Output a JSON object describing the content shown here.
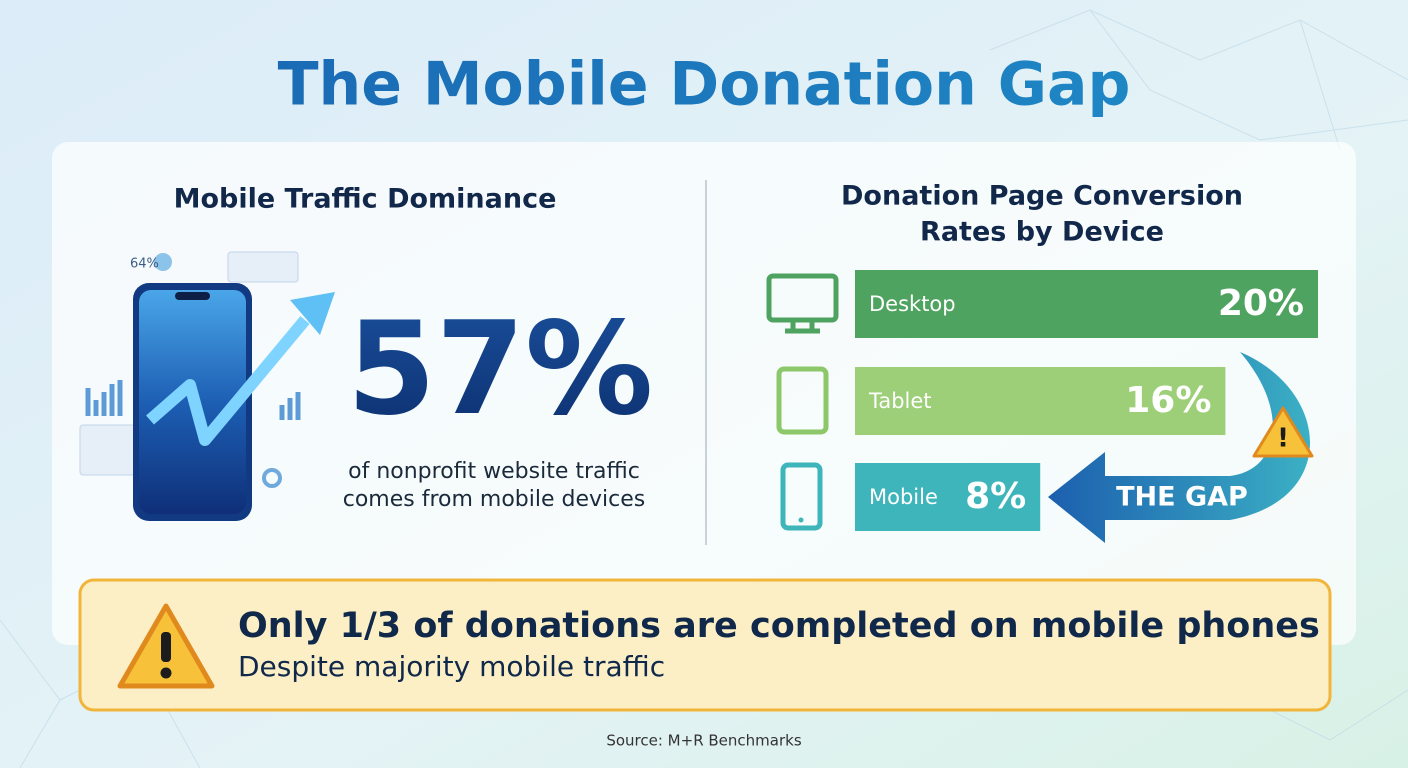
{
  "title": "The Mobile Donation Gap",
  "traffic": {
    "heading": "Mobile Traffic Dominance",
    "illustration_label": "64%",
    "stat": "57%",
    "caption": [
      "of nonprofit website traffic",
      "comes from mobile devices"
    ]
  },
  "chart_data": {
    "type": "bar",
    "orientation": "horizontal",
    "title": [
      "Donation Page Conversion",
      "Rates by Device"
    ],
    "categories": [
      "Desktop",
      "Tablet",
      "Mobile"
    ],
    "values": [
      20,
      16,
      8
    ],
    "value_labels": [
      "20%",
      "16%",
      "8%"
    ],
    "colors": [
      "#4fa360",
      "#9dcf78",
      "#3db5ba"
    ],
    "annotation": "THE GAP"
  },
  "callout": {
    "headline": "Only 1/3 of donations are completed on mobile phones",
    "subtext": "Despite majority mobile traffic"
  },
  "source": "Source: M+R Benchmarks"
}
